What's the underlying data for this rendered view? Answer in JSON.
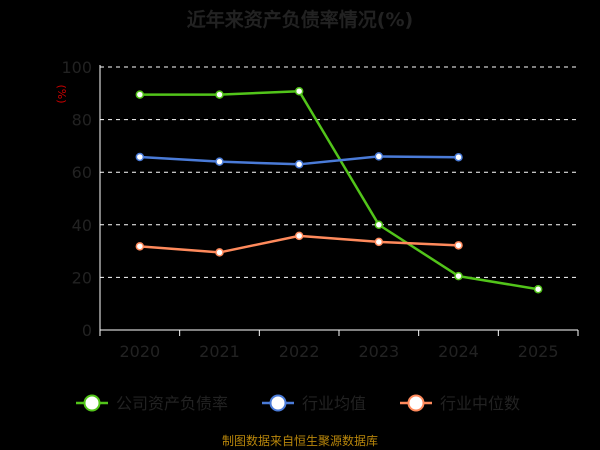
{
  "chart_data": {
    "type": "line",
    "title": "近年来资产负债率情况(%)",
    "ylabel": "(%)",
    "xlabel": "",
    "categories": [
      "2020",
      "2021",
      "2022",
      "2023",
      "2024",
      "2025"
    ],
    "ylim": [
      0,
      100
    ],
    "yticks": [
      0,
      20,
      40,
      60,
      80,
      100
    ],
    "grid": true,
    "legend_position": "bottom",
    "source_note": "制图数据来自恒生聚源数据库",
    "series": [
      {
        "name": "公司资产负债率",
        "color": "#52c41a",
        "values": [
          89.5,
          89.5,
          90.8,
          40.0,
          20.5,
          15.5
        ]
      },
      {
        "name": "行业均值",
        "color": "#4a7bd8",
        "values": [
          65.8,
          64.0,
          63.0,
          66.0,
          65.7,
          null
        ]
      },
      {
        "name": "行业中位数",
        "color": "#ff8a5c",
        "values": [
          31.8,
          29.5,
          35.8,
          33.5,
          32.2,
          null
        ]
      }
    ]
  }
}
